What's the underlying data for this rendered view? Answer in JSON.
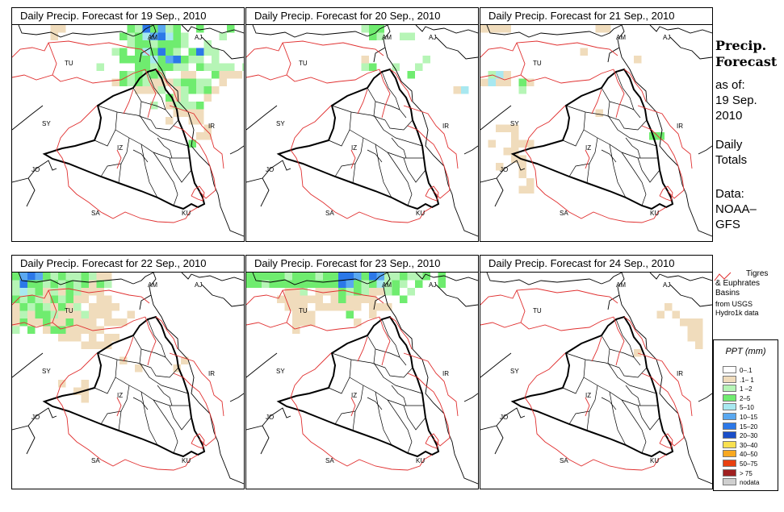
{
  "panels": [
    {
      "title": "Daily Precip. Forecast for  19 Sep., 2010",
      "precip": "p19"
    },
    {
      "title": "Daily Precip. Forecast for  20 Sep., 2010",
      "precip": "p20"
    },
    {
      "title": "Daily Precip. Forecast for  21 Sep., 2010",
      "precip": "p21"
    },
    {
      "title": "Daily Precip. Forecast for  22 Sep., 2010",
      "precip": "p22"
    },
    {
      "title": "Daily Precip. Forecast for  23 Sep., 2010",
      "precip": "p23"
    },
    {
      "title": "Daily Precip. Forecast for  24 Sep., 2010",
      "precip": "p24"
    }
  ],
  "map_labels": {
    "am": "AM",
    "aj": "AJ",
    "tu": "TU",
    "sy": "SY",
    "ir": "IR",
    "iz": "IZ",
    "jo": "JO",
    "sa": "SA",
    "ku": "KU"
  },
  "sidebar": {
    "title_line1": "Precip.",
    "title_line2": "Forecast",
    "asof": "as of:",
    "date_line1": "19 Sep.",
    "date_line2": "2010",
    "daily1": "Daily",
    "daily2": "Totals",
    "data1": "Data:",
    "data2": "NOAA–",
    "data3": "GFS"
  },
  "basin_legend": {
    "line1": "Tigres",
    "line2": "& Euphrates",
    "line3": "Basins",
    "src1": "from USGS",
    "src2": "Hydro1k data",
    "color": "#e03030"
  },
  "ppt_legend": {
    "title": "PPT (mm)",
    "items": [
      {
        "label": "0–.1",
        "color": "#ffffff"
      },
      {
        "label": ".1– 1",
        "color": "#f0dcbc"
      },
      {
        "label": "1 –2",
        "color": "#b6f5b6"
      },
      {
        "label": "2–5",
        "color": "#6fec6f"
      },
      {
        "label": "5–10",
        "color": "#a8e8f0"
      },
      {
        "label": "10–15",
        "color": "#5aa8f0"
      },
      {
        "label": "15–20",
        "color": "#2c78e8"
      },
      {
        "label": "20–30",
        "color": "#1a4ec8"
      },
      {
        "label": "30–40",
        "color": "#f8e050"
      },
      {
        "label": "40–50",
        "color": "#f8a820"
      },
      {
        "label": "50–75",
        "color": "#e84010"
      },
      {
        "label": "> 75",
        "color": "#a02020"
      },
      {
        "label": "nodata",
        "color": "#cfcfcf"
      }
    ]
  }
}
